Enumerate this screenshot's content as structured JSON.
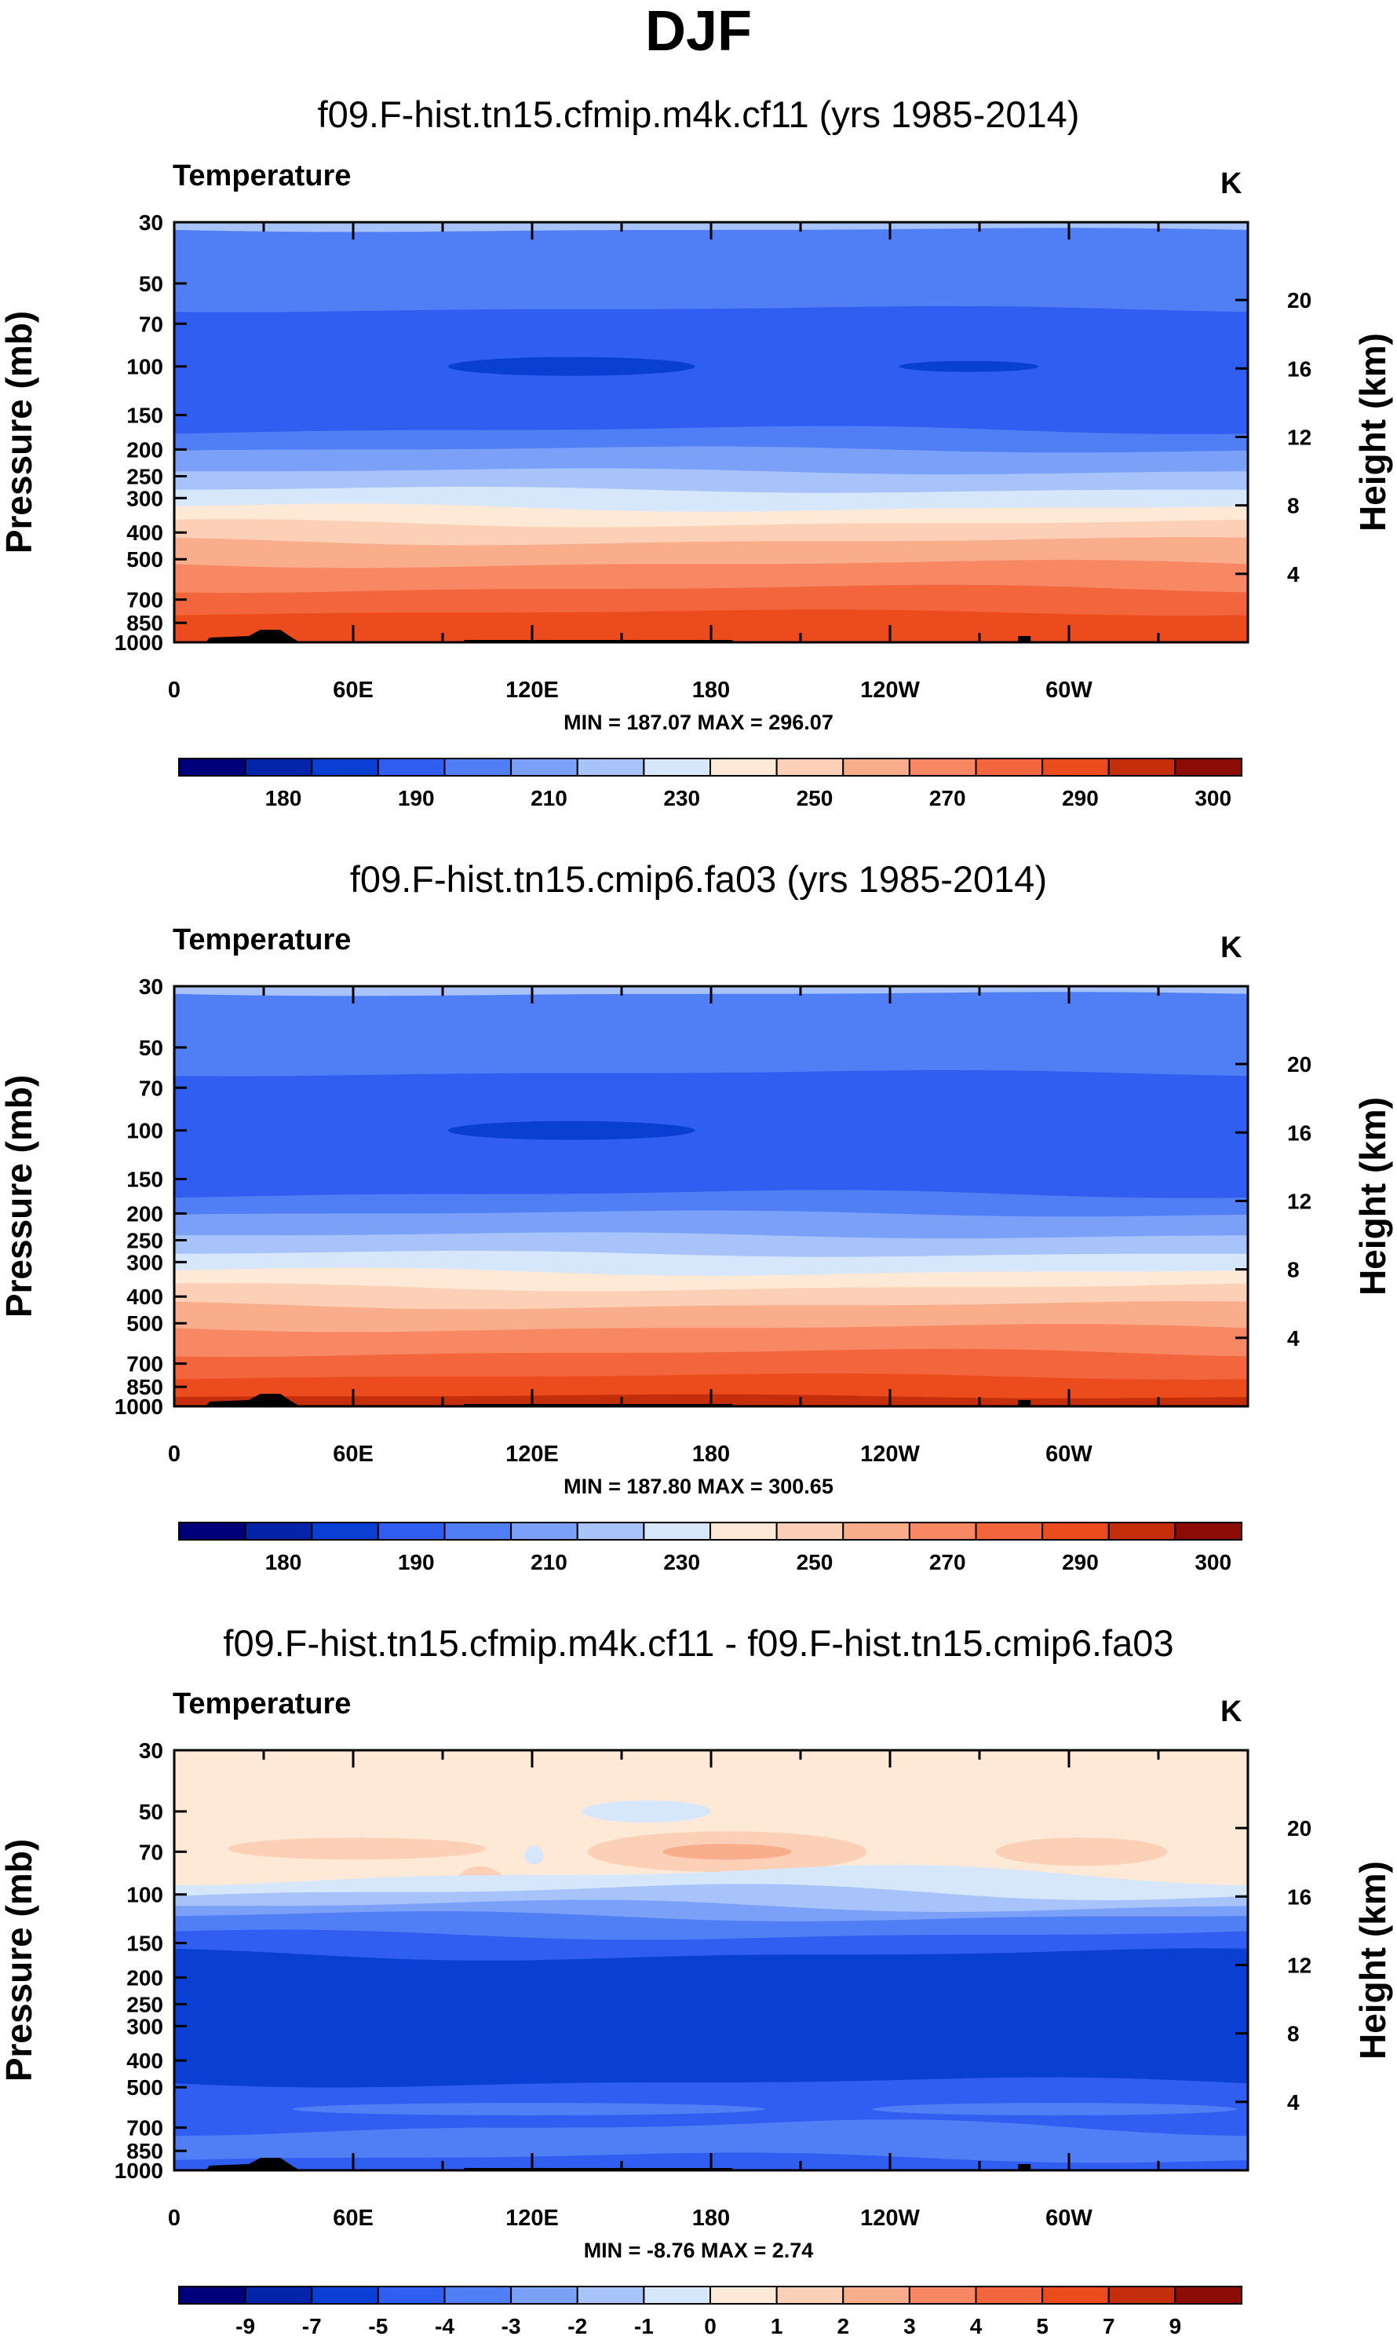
{
  "title": "DJF",
  "colorbar_labels_abs": [
    "180",
    "190",
    "210",
    "230",
    "250",
    "270",
    "290",
    "300"
  ],
  "colorbar_labels_diff": [
    "-9",
    "-7",
    "-5",
    "-4",
    "-3",
    "-2",
    "-1",
    "0",
    "1",
    "2",
    "3",
    "4",
    "5",
    "7",
    "9"
  ],
  "colors": {
    "abs_scale": [
      "#00007a",
      "#0323a9",
      "#0a3fd4",
      "#2f5ef0",
      "#4f7ef5",
      "#7ba0f8",
      "#a8c3fa",
      "#d6e6fb",
      "#fde9d6",
      "#fcd0b6",
      "#f9ad8b",
      "#f78863",
      "#f2653d",
      "#ec4b1d",
      "#c42e0a",
      "#8b0d06"
    ],
    "terrain": "#000000"
  },
  "chart_data": [
    {
      "type": "contour",
      "panel_title": "f09.F-hist.tn15.cfmip.m4k.cf11 (yrs 1985-2014)",
      "variable": "Temperature",
      "units": "K",
      "min_max": "MIN = 187.07   MAX = 296.07",
      "min": 187.07,
      "max": 296.07,
      "ylabel": "Pressure (mb)",
      "ylabel_right": "Height (km)",
      "y_ticks": [
        "30",
        "50",
        "70",
        "100",
        "150",
        "200",
        "250",
        "300",
        "400",
        "500",
        "700",
        "850",
        "1000"
      ],
      "y_ticks_right": [
        "20",
        "16",
        "12",
        "8",
        "4"
      ],
      "x_ticks": [
        "0",
        "60E",
        "120E",
        "180",
        "120W",
        "60W"
      ],
      "colorbar_levels": [
        180,
        190,
        210,
        230,
        250,
        270,
        290,
        300
      ]
    },
    {
      "type": "contour",
      "panel_title": "f09.F-hist.tn15.cmip6.fa03 (yrs 1985-2014)",
      "variable": "Temperature",
      "units": "K",
      "min_max": "MIN = 187.80   MAX = 300.65",
      "min": 187.8,
      "max": 300.65,
      "ylabel": "Pressure (mb)",
      "ylabel_right": "Height (km)",
      "y_ticks": [
        "30",
        "50",
        "70",
        "100",
        "150",
        "200",
        "250",
        "300",
        "400",
        "500",
        "700",
        "850",
        "1000"
      ],
      "y_ticks_right": [
        "20",
        "16",
        "12",
        "8",
        "4"
      ],
      "x_ticks": [
        "0",
        "60E",
        "120E",
        "180",
        "120W",
        "60W"
      ],
      "colorbar_levels": [
        180,
        190,
        210,
        230,
        250,
        270,
        290,
        300
      ]
    },
    {
      "type": "contour",
      "panel_title": "f09.F-hist.tn15.cfmip.m4k.cf11 - f09.F-hist.tn15.cmip6.fa03",
      "variable": "Temperature",
      "units": "K",
      "min_max": "MIN =  -8.76   MAX =    2.74",
      "min": -8.76,
      "max": 2.74,
      "ylabel": "Pressure (mb)",
      "ylabel_right": "Height (km)",
      "y_ticks": [
        "30",
        "50",
        "70",
        "100",
        "150",
        "200",
        "250",
        "300",
        "400",
        "500",
        "700",
        "850",
        "1000"
      ],
      "y_ticks_right": [
        "20",
        "16",
        "12",
        "8",
        "4"
      ],
      "x_ticks": [
        "0",
        "60E",
        "120E",
        "180",
        "120W",
        "60W"
      ],
      "colorbar_levels": [
        -9,
        -7,
        -5,
        -4,
        -3,
        -2,
        -1,
        0,
        1,
        2,
        3,
        4,
        5,
        7,
        9
      ]
    }
  ]
}
